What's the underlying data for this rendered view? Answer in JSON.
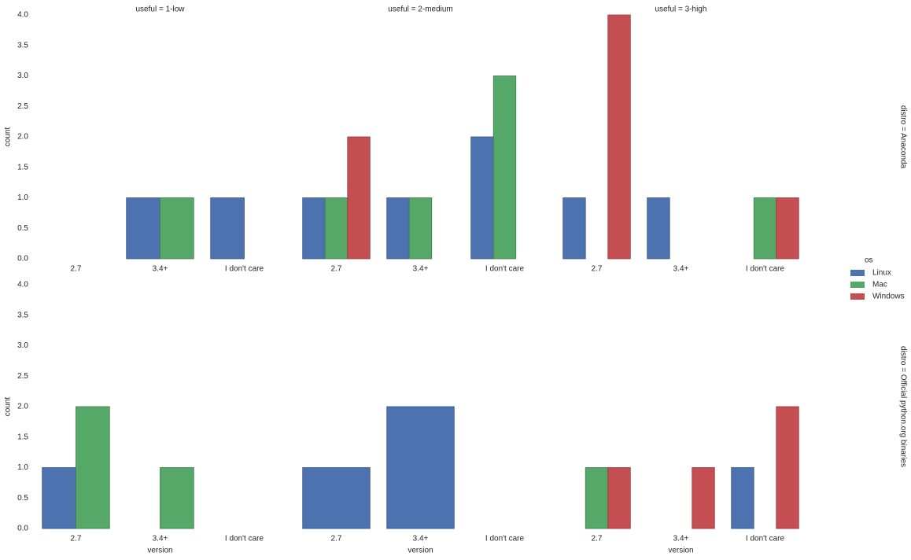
{
  "chart_data": {
    "type": "bar",
    "col_titles": [
      "useful = 1-low",
      "useful = 2-medium",
      "useful = 3-high"
    ],
    "row_titles": [
      "distro = Anaconda",
      "distro = Official python.org binaries"
    ],
    "x_label": "version",
    "y_label": "count",
    "legend_title": "os",
    "series": [
      {
        "name": "Linux",
        "color": "#4c72b0"
      },
      {
        "name": "Mac",
        "color": "#55a868"
      },
      {
        "name": "Windows",
        "color": "#c44e52"
      }
    ],
    "ylim": [
      0,
      4
    ],
    "yticks": [
      {
        "value": 0,
        "label": "0.0"
      },
      0.5,
      {
        "value": 1,
        "label": "1.0"
      },
      1.5,
      {
        "value": 2,
        "label": "2.0"
      },
      2.5,
      {
        "value": 3,
        "label": "3.0"
      },
      3.5,
      {
        "value": 4,
        "label": "4.0"
      }
    ],
    "facets": [
      {
        "categories": [
          "2.7",
          "3.4+",
          "I don't care"
        ],
        "series": [
          {
            "name": "Linux",
            "values": [
              0,
              1,
              1
            ]
          },
          {
            "name": "Mac",
            "values": [
              0,
              1,
              0
            ]
          }
        ]
      },
      {
        "categories": [
          "2.7",
          "3.4+",
          "I don't care"
        ],
        "series": [
          {
            "name": "Linux",
            "values": [
              1,
              1,
              2
            ]
          },
          {
            "name": "Mac",
            "values": [
              1,
              1,
              3
            ]
          },
          {
            "name": "Windows",
            "values": [
              2,
              0,
              0
            ]
          }
        ]
      },
      {
        "categories": [
          "2.7",
          "3.4+",
          "I don't care"
        ],
        "series": [
          {
            "name": "Linux",
            "values": [
              1,
              1,
              0
            ]
          },
          {
            "name": "Mac",
            "values": [
              0,
              0,
              1
            ]
          },
          {
            "name": "Windows",
            "values": [
              4,
              0,
              1
            ]
          }
        ]
      },
      {
        "categories": [
          "2.7",
          "3.4+",
          "I don't care"
        ],
        "series": [
          {
            "name": "Linux",
            "values": [
              1,
              0,
              0
            ]
          },
          {
            "name": "Mac",
            "values": [
              2,
              1,
              0
            ]
          }
        ]
      },
      {
        "categories": [
          "2.7",
          "3.4+",
          "I don't care"
        ],
        "series": [
          {
            "name": "Linux",
            "values": [
              1,
              2,
              0
            ]
          }
        ]
      },
      {
        "categories": [
          "2.7",
          "3.4+",
          "I don't care"
        ],
        "series": [
          {
            "name": "Linux",
            "values": [
              0,
              0,
              1
            ]
          },
          {
            "name": "Mac",
            "values": [
              1,
              0,
              0
            ]
          },
          {
            "name": "Windows",
            "values": [
              1,
              1,
              2
            ]
          }
        ]
      }
    ]
  }
}
